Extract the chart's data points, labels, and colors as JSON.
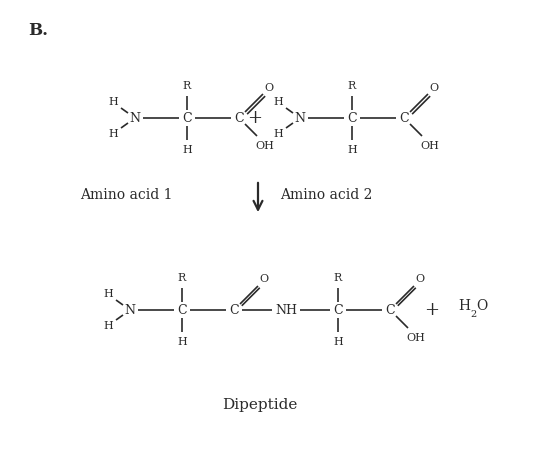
{
  "title_label": "B.",
  "bg_color": "#ffffff",
  "text_color": "#2a2a2a",
  "label_aa1": "Amino acid 1",
  "label_aa2": "Amino acid 2",
  "label_dipeptide": "Dipeptide",
  "font_size_atom": 9,
  "font_size_small": 8,
  "font_size_title": 12,
  "font_size_label": 10,
  "font_size_plus": 13,
  "lw": 1.2
}
